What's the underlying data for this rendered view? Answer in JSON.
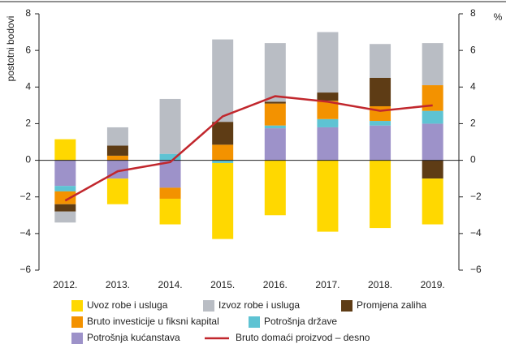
{
  "chart_data": {
    "type": "bar",
    "stacked": true,
    "y_label": "postotni bodovi",
    "y2_label": "%",
    "categories": [
      "2012.",
      "2013.",
      "2014.",
      "2015.",
      "2016.",
      "2017.",
      "2018.",
      "2019."
    ],
    "series": [
      {
        "name": "Uvoz robe i usluga",
        "color": "#ffd800",
        "values": [
          1.15,
          -1.4,
          -1.4,
          -4.15,
          -3.0,
          -3.9,
          -3.7,
          -2.5
        ]
      },
      {
        "name": "Izvoz robe i usluga",
        "color": "#b9bdc4",
        "values": [
          -0.6,
          1.0,
          3.0,
          4.5,
          3.2,
          3.3,
          1.85,
          2.3
        ]
      },
      {
        "name": "Promjena zaliha",
        "color": "#5e3c15",
        "values": [
          -0.4,
          0.55,
          0,
          1.25,
          0.1,
          0.45,
          1.55,
          -1.0
        ]
      },
      {
        "name": "Bruto investicije u fiksni kapital",
        "color": "#f39200",
        "values": [
          -0.7,
          0.25,
          -0.6,
          0.85,
          1.2,
          1.0,
          0.8,
          1.4
        ]
      },
      {
        "name": "Potrošnja države",
        "color": "#5ec3d3",
        "values": [
          -0.3,
          0,
          0.35,
          -0.15,
          0.15,
          0.45,
          0.25,
          0.7
        ]
      },
      {
        "name": "Potrošnja kućanstava",
        "color": "#9d92c9",
        "values": [
          -1.4,
          -1.0,
          -1.5,
          0,
          1.75,
          1.8,
          1.9,
          2.0
        ]
      },
      {
        "name": "Bruto domaći proizvod – desno",
        "type": "line",
        "axis": "y2",
        "color": "#c1272d",
        "values": [
          -2.2,
          -0.6,
          -0.1,
          2.4,
          3.5,
          3.2,
          2.7,
          3.0
        ]
      }
    ],
    "ylim": [
      -6,
      8
    ],
    "yticks": [
      {
        "value": -6,
        "label": "−6"
      },
      {
        "value": -4,
        "label": "−4"
      },
      {
        "value": -2,
        "label": "−2"
      },
      0,
      2,
      4,
      6,
      8
    ],
    "y2lim": [
      -6,
      8
    ],
    "y2ticks": [
      {
        "value": -6,
        "label": "−6"
      },
      {
        "value": -4,
        "label": "−4"
      },
      {
        "value": -2,
        "label": "−2"
      },
      0,
      2,
      4,
      6,
      8
    ]
  }
}
